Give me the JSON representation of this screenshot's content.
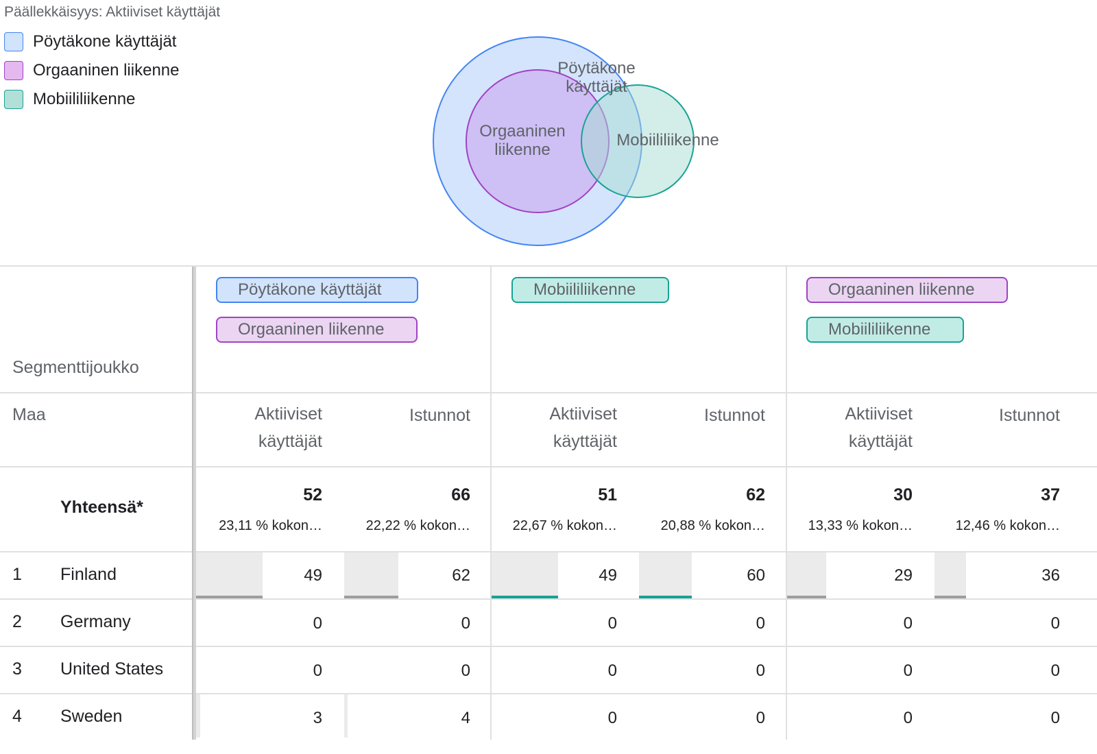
{
  "title": "Päällekkäisyys: Aktiiviset käyttäjät",
  "legend": [
    {
      "label": "Pöytäkone käyttäjät",
      "color": "#4285f4",
      "fill": "#d2e3fc"
    },
    {
      "label": "Orgaaninen liikenne",
      "color": "#a142c4",
      "fill": "#e6b8f0"
    },
    {
      "label": "Mobiililiikenne",
      "color": "#16a394",
      "fill": "#b2dfd8"
    }
  ],
  "venn": {
    "labels": {
      "desktop_line1": "Pöytäkone",
      "desktop_line2": "käyttäjät",
      "organic_line1": "Orgaaninen",
      "organic_line2": "liikenne",
      "mobile": "Mobiililiikenne"
    }
  },
  "table": {
    "segment_header": "Segmenttijoukko",
    "dimension_header": "Maa",
    "segments": [
      {
        "chips": [
          "Pöytäkone käyttäjät",
          "Orgaaninen liikenne"
        ]
      },
      {
        "chips": [
          "Mobiililiikenne"
        ]
      },
      {
        "chips": [
          "Orgaaninen liikenne",
          "Mobiililiikenne"
        ]
      }
    ],
    "metrics": {
      "active_users_line1": "Aktiiviset",
      "active_users_line2": "käyttäjät",
      "sessions": "Istunnot"
    },
    "totals_label": "Yhteensä*",
    "totals": [
      {
        "value": "52",
        "pct": "23,11 % kokon…"
      },
      {
        "value": "66",
        "pct": "22,22 % kokon…"
      },
      {
        "value": "51",
        "pct": "22,67 % kokon…"
      },
      {
        "value": "62",
        "pct": "20,88 % kokon…"
      },
      {
        "value": "30",
        "pct": "13,33 % kokon…"
      },
      {
        "value": "37",
        "pct": "12,46 % kokon…"
      }
    ],
    "rows": [
      {
        "index": "1",
        "country": "Finland",
        "values": [
          "49",
          "62",
          "49",
          "60",
          "29",
          "36"
        ]
      },
      {
        "index": "2",
        "country": "Germany",
        "values": [
          "0",
          "0",
          "0",
          "0",
          "0",
          "0"
        ]
      },
      {
        "index": "3",
        "country": "United States",
        "values": [
          "0",
          "0",
          "0",
          "0",
          "0",
          "0"
        ]
      },
      {
        "index": "4",
        "country": "Sweden",
        "values": [
          "3",
          "4",
          "0",
          "0",
          "0",
          "0"
        ]
      }
    ],
    "bar_colors": [
      "#9e9e9e",
      "#9e9e9e",
      "#16a394",
      "#16a394",
      "#9e9e9e",
      "#9e9e9e"
    ]
  }
}
